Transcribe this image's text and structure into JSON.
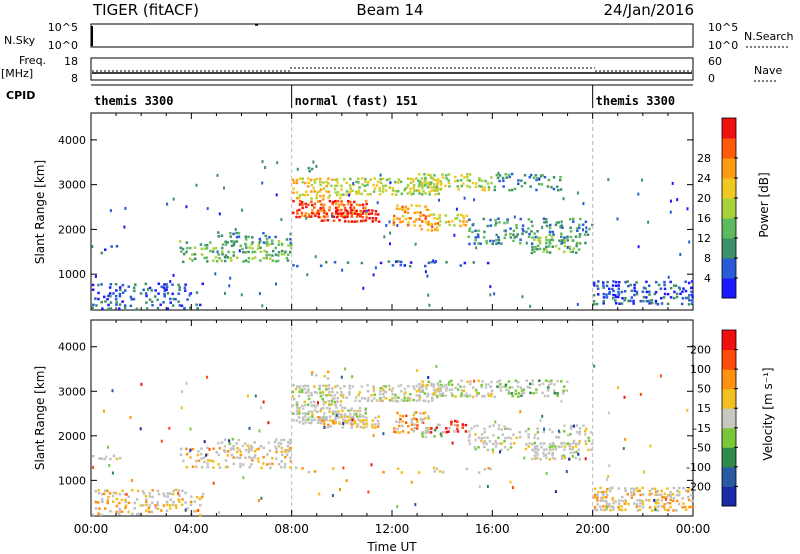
{
  "header": {
    "station": "TIGER (fitACF)",
    "beam": "Beam 14",
    "date": "24/Jan/2016"
  },
  "panels": {
    "nsky": {
      "label": "N.Sky",
      "right_label": "N.Search",
      "ticks_left": [
        "10^5",
        "10^0"
      ],
      "ticks_right": [
        "10^5",
        "10^0"
      ]
    },
    "freq": {
      "label": "Freq.",
      "unit": "[MHz]",
      "right_label": "Nave",
      "ticks_left": [
        "18",
        "8"
      ],
      "ticks_right": [
        "60",
        "0"
      ]
    },
    "cpid": {
      "label": "CPID",
      "segments": [
        {
          "name": "themis 3300",
          "start_hour": 0,
          "end_hour": 8
        },
        {
          "name": "normal (fast) 151",
          "start_hour": 8,
          "end_hour": 20
        },
        {
          "name": "themis 3300",
          "start_hour": 20,
          "end_hour": 24
        }
      ]
    }
  },
  "chart_data": [
    {
      "type": "heatmap",
      "name": "power",
      "ylabel": "Slant Range [km]",
      "xlabel": "",
      "ylim": [
        200,
        4600
      ],
      "yticks": [
        1000,
        2000,
        3000,
        4000
      ],
      "xlim_hours": [
        0,
        24
      ],
      "colorbar_label": "Power [dB]",
      "colorbar_ticks": [
        "4",
        "8",
        "12",
        "16",
        "20",
        "24",
        "28"
      ],
      "colorbar_colors": [
        "#1a1aff",
        "#2a5bd7",
        "#3f8f6a",
        "#5fba5f",
        "#a8d23c",
        "#f0c820",
        "#ff9a14",
        "#ff5a0a",
        "#f01010"
      ]
    },
    {
      "type": "heatmap",
      "name": "velocity",
      "ylabel": "Slant Range [km]",
      "xlabel": "Time UT",
      "ylim": [
        200,
        4600
      ],
      "yticks": [
        1000,
        2000,
        3000,
        4000
      ],
      "xlim_hours": [
        0,
        24
      ],
      "xticks": [
        "00:00",
        "04:00",
        "08:00",
        "12:00",
        "16:00",
        "20:00",
        "00:00"
      ],
      "colorbar_label": "Velocity [m s⁻¹]",
      "colorbar_ticks": [
        "200",
        "100",
        "50",
        "15",
        "-15",
        "-50",
        "-100",
        "-200"
      ],
      "colorbar_colors": [
        "#1a2aa8",
        "#2a5aa0",
        "#2e8a4a",
        "#7ac83a",
        "#c8c8c0",
        "#f0c020",
        "#ff9010",
        "#ff4a0a",
        "#ee1010"
      ],
      "ground_scatter_color": "#c0c0c0"
    }
  ]
}
